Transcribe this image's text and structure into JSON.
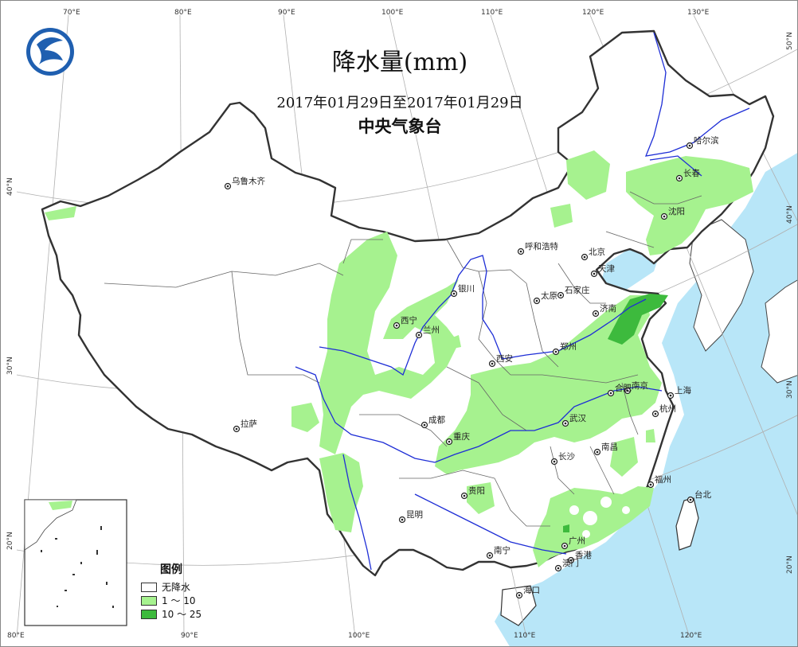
{
  "title": "降水量(mm)",
  "date_range": "2017年01月29日至2017年01月29日",
  "source": "中央气象台",
  "logo_icon": "cma-logo-icon",
  "legend": {
    "title": "图例",
    "items": [
      {
        "label": "无降水",
        "color": "#ffffff"
      },
      {
        "label": "1 ～ 10",
        "color": "#a6f28f"
      },
      {
        "label": "10 ～ 25",
        "color": "#3dba3d"
      }
    ]
  },
  "colors": {
    "sea": "#b8e6f8",
    "land": "#ffffff",
    "border": "#333333",
    "river": "#1e2ed6"
  },
  "top_ticks": [
    "70°E",
    "80°E",
    "90°E",
    "100°E",
    "110°E",
    "120°E",
    "130°E"
  ],
  "bottom_ticks": [
    "80°E",
    "90°E",
    "100°E",
    "110°E",
    "120°E"
  ],
  "left_ticks": [
    "40°N",
    "30°N",
    "20°N"
  ],
  "right_ticks": [
    "50°N",
    "40°N",
    "30°N",
    "20°N"
  ],
  "cities": [
    "哈尔滨",
    "长春",
    "乌鲁木齐",
    "沈阳",
    "呼和浩特",
    "北京",
    "天津",
    "银川",
    "太原",
    "石家庄",
    "西宁",
    "兰州",
    "济南",
    "郑州",
    "西安",
    "南京",
    "合肥",
    "上海",
    "拉萨",
    "成都",
    "杭州",
    "武汉",
    "重庆",
    "南昌",
    "长沙",
    "福州",
    "台北",
    "贵阳",
    "昆明",
    "广州",
    "南宁",
    "香港",
    "澳门",
    "海口"
  ]
}
